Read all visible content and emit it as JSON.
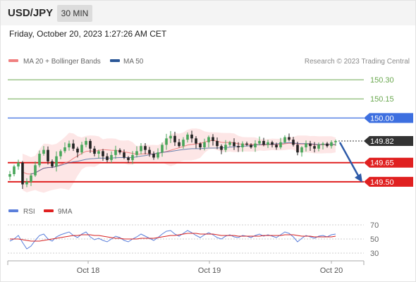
{
  "header": {
    "pair": "USD/JPY",
    "interval": "30 MIN"
  },
  "datetime": "Friday, October 20, 2023 1:27:26 AM CET",
  "legend": {
    "ma20": "MA 20 + Bollinger Bands",
    "ma50": "MA 50",
    "credit": "Research © 2023 Trading Central"
  },
  "rsi_legend": {
    "rsi": "RSI",
    "ma9": "9MA"
  },
  "colors": {
    "resistance_far": "#6aa84f",
    "resistance_near": "#3d6fe0",
    "support": "#e02020",
    "last_price": "#333333",
    "bollinger_fill": "#fde3e3",
    "ma20": "#f08080",
    "ma50": "#2b5797",
    "candle_up": "#48a65a",
    "candle_down": "#222222",
    "arrow": "#2d5aa8",
    "rsi_line": "#5b7fdb",
    "rsi_ma": "#d62020"
  },
  "chart_data": [
    {
      "type": "candlestick",
      "title": "USD/JPY",
      "x_tick_labels": [
        "Oct 18",
        "Oct 19",
        "Oct 20"
      ],
      "ylim": [
        149.35,
        150.4
      ],
      "levels": [
        {
          "value": 150.3,
          "label": "150.30",
          "kind": "resistance"
        },
        {
          "value": 150.15,
          "label": "150.15",
          "kind": "resistance"
        },
        {
          "value": 150.0,
          "label": "150.00",
          "kind": "resistance"
        },
        {
          "value": 149.82,
          "label": "149.82",
          "kind": "last"
        },
        {
          "value": 149.65,
          "label": "149.65",
          "kind": "support"
        },
        {
          "value": 149.5,
          "label": "149.50",
          "kind": "support"
        }
      ],
      "last_price": 149.82,
      "forecast": {
        "from": 149.82,
        "to": 149.5,
        "direction": "down"
      },
      "close": [
        149.56,
        149.62,
        149.65,
        149.48,
        149.5,
        149.55,
        149.63,
        149.72,
        149.75,
        149.66,
        149.62,
        149.7,
        149.74,
        149.77,
        149.8,
        149.76,
        149.73,
        149.79,
        149.82,
        149.76,
        149.72,
        149.74,
        149.7,
        149.67,
        149.71,
        149.75,
        149.73,
        149.69,
        149.67,
        149.71,
        149.74,
        149.78,
        149.75,
        149.72,
        149.69,
        149.73,
        149.79,
        149.84,
        149.86,
        149.81,
        149.78,
        149.83,
        149.87,
        149.84,
        149.8,
        149.77,
        149.81,
        149.85,
        149.82,
        149.78,
        149.75,
        149.79,
        149.81,
        149.78,
        149.77,
        149.8,
        149.79,
        149.77,
        149.8,
        149.82,
        149.79,
        149.81,
        149.79,
        149.77,
        149.81,
        149.85,
        149.83,
        149.79,
        149.73,
        149.77,
        149.8,
        149.78,
        149.76,
        149.79,
        149.8,
        149.78,
        149.81,
        149.82
      ]
    },
    {
      "type": "line",
      "title": "RSI",
      "series": [
        {
          "name": "RSI",
          "values": [
            47,
            50,
            55,
            45,
            36,
            40,
            48,
            55,
            57,
            50,
            47,
            53,
            56,
            58,
            60,
            55,
            52,
            57,
            60,
            53,
            49,
            51,
            48,
            46,
            50,
            54,
            52,
            48,
            46,
            50,
            53,
            57,
            54,
            51,
            48,
            52,
            57,
            61,
            62,
            57,
            54,
            58,
            62,
            59,
            55,
            52,
            56,
            59,
            56,
            52,
            50,
            54,
            56,
            53,
            52,
            55,
            54,
            52,
            55,
            57,
            54,
            56,
            54,
            52,
            56,
            60,
            58,
            53,
            46,
            51,
            55,
            53,
            51,
            54,
            55,
            53,
            56,
            57
          ]
        },
        {
          "name": "9MA",
          "values": [
            50,
            50,
            50,
            49,
            48,
            47,
            47,
            47,
            48,
            49,
            50,
            51,
            52,
            53,
            54,
            55,
            55,
            56,
            56,
            56,
            55,
            55,
            54,
            53,
            52,
            51,
            51,
            50,
            50,
            50,
            50,
            51,
            51,
            51,
            51,
            52,
            53,
            54,
            55,
            55,
            56,
            57,
            58,
            58,
            58,
            57,
            57,
            57,
            57,
            56,
            55,
            55,
            55,
            55,
            54,
            54,
            54,
            54,
            54,
            54,
            55,
            55,
            55,
            55,
            55,
            56,
            56,
            56,
            55,
            54,
            54,
            54,
            53,
            53,
            53,
            53,
            53,
            54
          ]
        }
      ],
      "ylim": [
        25,
        75
      ],
      "y_ticks": [
        70,
        50,
        30
      ]
    }
  ]
}
